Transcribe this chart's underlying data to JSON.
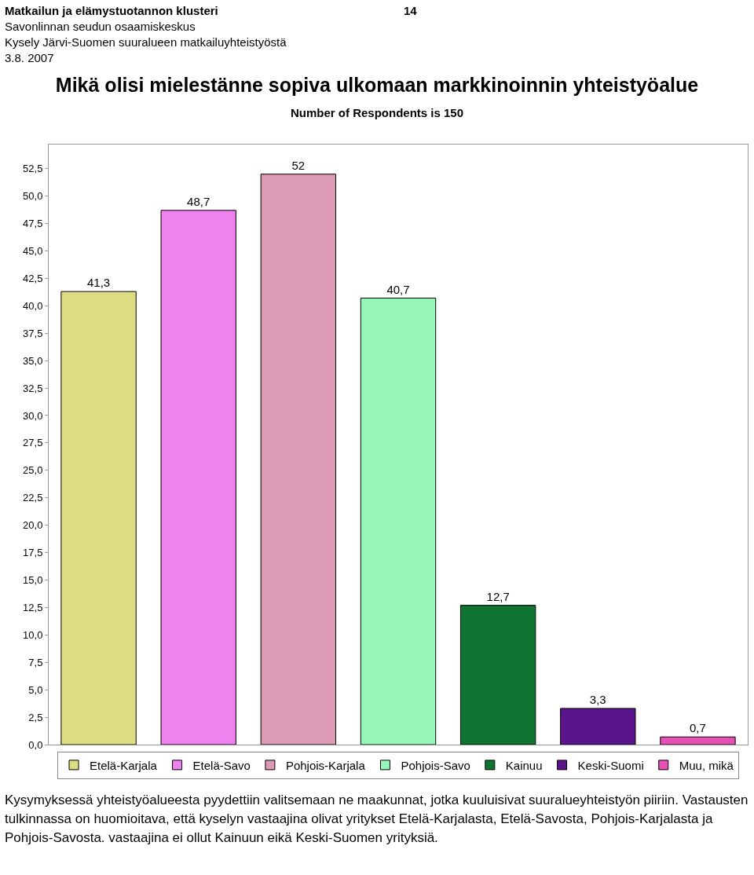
{
  "chart_data": {
    "type": "bar",
    "title": "Mikä olisi mielestänne sopiva ulkomaan markkinoinnin yhteistyöalue",
    "subtitle": "Number of Respondents is 150",
    "annotations": [
      "Matkailun ja elämystuotannon klusteri",
      "14",
      "Savonlinnan seudun osaamiskeskus",
      "Kysely Järvi-Suomen suuralueen matkailuyhteistyöstä",
      "3.8. 2007",
      "Kysymyksessä yhteistyöalueesta pyydettiin valitsemaan ne maakunnat, jotka kuuluisivat suuralueyhteistyön piiriin. Vastausten tulkinnassa on huomioitava, että kyselyn vastaajina olivat yritykset Etelä-Karjalasta, Etelä-Savosta, Pohjois-Karjalasta ja Pohjois-Savosta. vastaajina ei ollut Kainuun eikä Keski-Suomen yrityksiä."
    ],
    "categories": [
      null,
      null,
      null,
      null,
      null,
      null,
      null
    ],
    "series": [
      {
        "name": "Etelä-Karjala",
        "color": "#dcdc82",
        "values": [
          41.3,
          null,
          null,
          null,
          null,
          null,
          null
        ],
        "value_labels": [
          "41,3",
          null,
          null,
          null,
          null,
          null,
          null
        ]
      },
      {
        "name": "Etelä-Savo",
        "color": "#ee82ee",
        "values": [
          null,
          48.7,
          null,
          null,
          null,
          null,
          null
        ],
        "value_labels": [
          null,
          "48,7",
          null,
          null,
          null,
          null,
          null
        ]
      },
      {
        "name": "Pohjois-Karjala",
        "color": "#dc9ab4",
        "values": [
          null,
          null,
          52,
          null,
          null,
          null,
          null
        ],
        "value_labels": [
          null,
          null,
          "52",
          null,
          null,
          null,
          null
        ]
      },
      {
        "name": "Pohjois-Savo",
        "color": "#96f5b9",
        "values": [
          null,
          null,
          null,
          40.7,
          null,
          null,
          null
        ],
        "value_labels": [
          null,
          null,
          null,
          "40,7",
          null,
          null,
          null
        ]
      },
      {
        "name": "Kainuu",
        "color": "#0f7332",
        "values": [
          null,
          null,
          null,
          null,
          12.7,
          null,
          null
        ],
        "value_labels": [
          null,
          null,
          null,
          null,
          "12,7",
          null,
          null
        ]
      },
      {
        "name": "Keski-Suomi",
        "color": "#5a148c",
        "values": [
          null,
          null,
          null,
          null,
          null,
          3.3,
          null
        ],
        "value_labels": [
          null,
          null,
          null,
          null,
          null,
          "3,3",
          null
        ]
      },
      {
        "name": "Muu, mikä",
        "color": "#e650b4",
        "values": [
          null,
          null,
          null,
          null,
          null,
          null,
          0.7
        ],
        "value_labels": [
          null,
          null,
          null,
          null,
          null,
          null,
          "0,7"
        ]
      }
    ],
    "ylim": [
      0,
      54.7
    ],
    "yticks": [
      {
        "value": 0,
        "label": "0,0"
      },
      {
        "value": 2.5,
        "label": "2,5"
      },
      {
        "value": 5,
        "label": "5,0"
      },
      {
        "value": 7.5,
        "label": "7,5"
      },
      {
        "value": 10,
        "label": "10,0"
      },
      {
        "value": 12.5,
        "label": "12,5"
      },
      {
        "value": 15,
        "label": "15,0"
      },
      {
        "value": 17.5,
        "label": "17,5"
      },
      {
        "value": 20,
        "label": "20,0"
      },
      {
        "value": 22.5,
        "label": "22,5"
      },
      {
        "value": 25,
        "label": "25,0"
      },
      {
        "value": 27.5,
        "label": "27,5"
      },
      {
        "value": 30,
        "label": "30,0"
      },
      {
        "value": 32.5,
        "label": "32,5"
      },
      {
        "value": 35,
        "label": "35,0"
      },
      {
        "value": 37.5,
        "label": "37,5"
      },
      {
        "value": 40,
        "label": "40,0"
      },
      {
        "value": 42.5,
        "label": "42,5"
      },
      {
        "value": 45,
        "label": "45,0"
      },
      {
        "value": 47.5,
        "label": "47,5"
      },
      {
        "value": 50,
        "label": "50,0"
      },
      {
        "value": 52.5,
        "label": "52,5"
      }
    ],
    "grid": false,
    "legend": "bottom",
    "tick_labels": "y"
  }
}
